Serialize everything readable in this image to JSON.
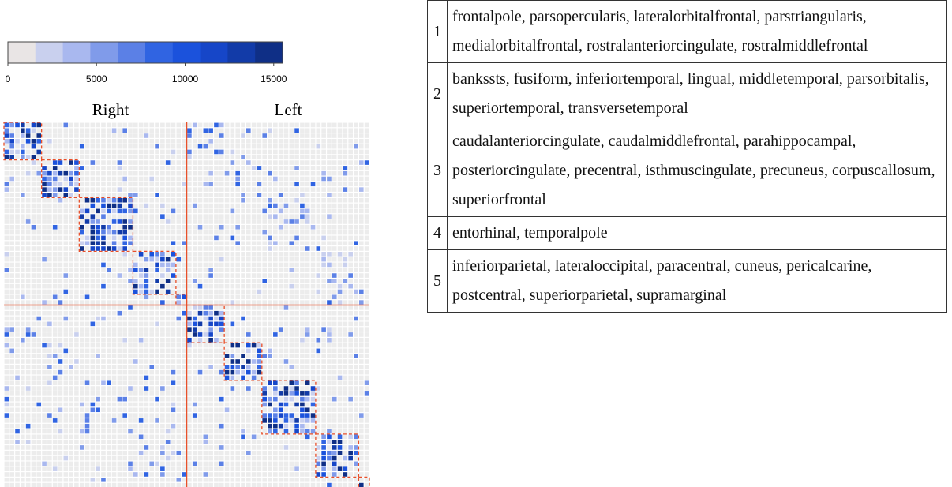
{
  "colorbar": {
    "lim": [
      0,
      15500
    ],
    "ticks": [
      0,
      5000,
      10000,
      15000
    ],
    "colors": [
      "#e9e5e5",
      "#c9d0ee",
      "#a9b8ef",
      "#809bea",
      "#5b80e6",
      "#3064e2",
      "#1b52dc",
      "#1646c8",
      "#123ba8",
      "#0f2f86"
    ]
  },
  "hemispheres": [
    "Right",
    "Left"
  ],
  "table": {
    "rows": [
      [
        "1",
        "frontalpole, parsopercularis, lateralorbitalfrontal, parstriangularis, medialorbitalfrontal, rostralanteriorcingulate, rostralmiddlefrontal"
      ],
      [
        "2",
        "bankssts, fusiform, inferiortemporal, lingual, middletemporal, parsorbitalis, superiortemporal, transversetemporal"
      ],
      [
        "3",
        "caudalanteriorcingulate, caudalmiddlefrontal, parahippocampal, posteriorcingulate, precentral, isthmuscingulate, precuneus, corpuscallosum, superiorfrontal"
      ],
      [
        "4",
        "entorhinal, temporalpole"
      ],
      [
        "5",
        "inferiorparietal, lateraloccipital, paracentral, cuneus, pericalcarine, postcentral, superiorparietal, supramarginal"
      ]
    ]
  }
}
